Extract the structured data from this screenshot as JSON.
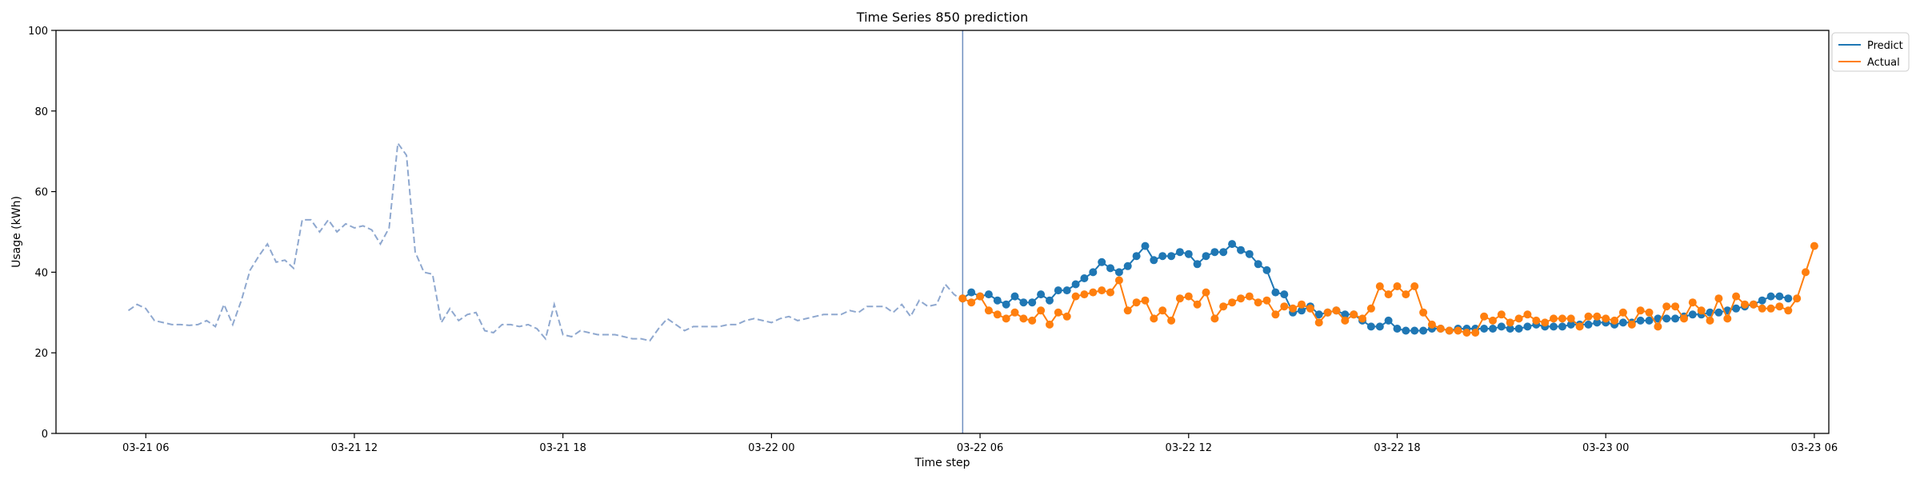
{
  "chart_data": {
    "type": "line",
    "title": "Time Series 850 prediction",
    "xlabel": "Time step",
    "ylabel": "Usage (kWh)",
    "ylim": [
      0,
      100
    ],
    "xlim": [
      "2024-03-21 03:25",
      "2024-03-23 06:25"
    ],
    "grid": false,
    "legend_position": "top-right, outside plot",
    "x_ticks": [
      "03-21 06",
      "03-21 12",
      "03-21 18",
      "03-22 00",
      "03-22 06",
      "03-22 12",
      "03-22 18",
      "03-23 00",
      "03-23 06"
    ],
    "y_ticks": [
      "0",
      "20",
      "40",
      "60",
      "80",
      "100"
    ],
    "forecast_start": "2024-03-22 05:30",
    "history": {
      "start": "2024-03-21 05:30",
      "step_minutes": 15,
      "color": "#8fa8cf",
      "style": "dashed",
      "values": [
        30.5,
        32,
        31,
        28,
        27.5,
        27,
        27,
        26.8,
        27,
        28,
        26.5,
        32,
        27,
        33,
        40.5,
        44,
        47,
        42.5,
        43,
        41,
        53,
        53,
        50,
        53,
        50,
        52,
        51,
        51.5,
        50.5,
        47,
        51,
        72,
        69,
        45,
        40,
        39.5,
        27.5,
        31,
        28,
        29.5,
        30,
        25.5,
        25,
        27,
        27,
        26.5,
        27,
        26,
        23.5,
        32,
        24.5,
        24,
        25.5,
        25,
        24.5,
        24.5,
        24.5,
        24,
        23.5,
        23.5,
        23,
        26,
        28.5,
        27,
        25.5,
        26.5,
        26.5,
        26.5,
        26.5,
        27,
        27,
        28,
        28.5,
        28,
        27.5,
        28.5,
        29,
        28,
        28.5,
        29,
        29.5,
        29.5,
        29.5,
        30.5,
        30,
        31.5,
        31.5,
        31.5,
        30,
        32,
        29,
        33,
        31.5,
        32,
        37,
        34.5,
        33
      ]
    },
    "series": [
      {
        "name": "Predict",
        "color": "#1f77b4",
        "start": "2024-03-22 05:30",
        "step_minutes": 15,
        "values": [
          33.5,
          35,
          34,
          34.5,
          33,
          32,
          34,
          32.5,
          32.5,
          34.5,
          33,
          35.5,
          35.5,
          37,
          38.5,
          40,
          42.5,
          41,
          40,
          41.5,
          44,
          46.5,
          43,
          44,
          44,
          45,
          44.5,
          42,
          44,
          45,
          45,
          47,
          45.5,
          44.5,
          42,
          40.5,
          35,
          34.5,
          30,
          30.5,
          31.5,
          29.5,
          30,
          30.5,
          29.5,
          29.5,
          28,
          26.5,
          26.5,
          28,
          26,
          25.5,
          25.5,
          25.5,
          26,
          26,
          25.5,
          26,
          26,
          26,
          26,
          26,
          26.5,
          26,
          26,
          26.5,
          27,
          26.5,
          26.5,
          26.5,
          27,
          27,
          27,
          27.5,
          27.5,
          27,
          27.5,
          27.5,
          28,
          28,
          28.5,
          28.5,
          28.5,
          29,
          29.5,
          29.5,
          30,
          30,
          30.5,
          31,
          31.5,
          32,
          33,
          34,
          34,
          33.5
        ]
      },
      {
        "name": "Actual",
        "color": "#ff7f0e",
        "start": "2024-03-22 05:30",
        "step_minutes": 15,
        "values": [
          33.5,
          32.5,
          34,
          30.5,
          29.5,
          28.5,
          30,
          28.5,
          28,
          30.5,
          27,
          30,
          29,
          34,
          34.5,
          35,
          35.5,
          35,
          38,
          30.5,
          32.5,
          33,
          28.5,
          30.5,
          28,
          33.5,
          34,
          32,
          35,
          28.5,
          31.5,
          32.5,
          33.5,
          34,
          32.5,
          33,
          29.5,
          31.5,
          31,
          32,
          31,
          27.5,
          30,
          30.5,
          28,
          29.5,
          28.5,
          31,
          36.5,
          34.5,
          36.5,
          34.5,
          36.5,
          30,
          27,
          26,
          25.5,
          25.5,
          25,
          25,
          29,
          28,
          29.5,
          27.5,
          28.5,
          29.5,
          28,
          27.5,
          28.5,
          28.5,
          28.5,
          26.5,
          29,
          29,
          28.5,
          28,
          30,
          27,
          30.5,
          30,
          26.5,
          31.5,
          31.5,
          28.5,
          32.5,
          30.5,
          28,
          33.5,
          28.5,
          34,
          32,
          32,
          31,
          31,
          31.5,
          30.5,
          33.5,
          40,
          46.5
        ]
      }
    ]
  }
}
